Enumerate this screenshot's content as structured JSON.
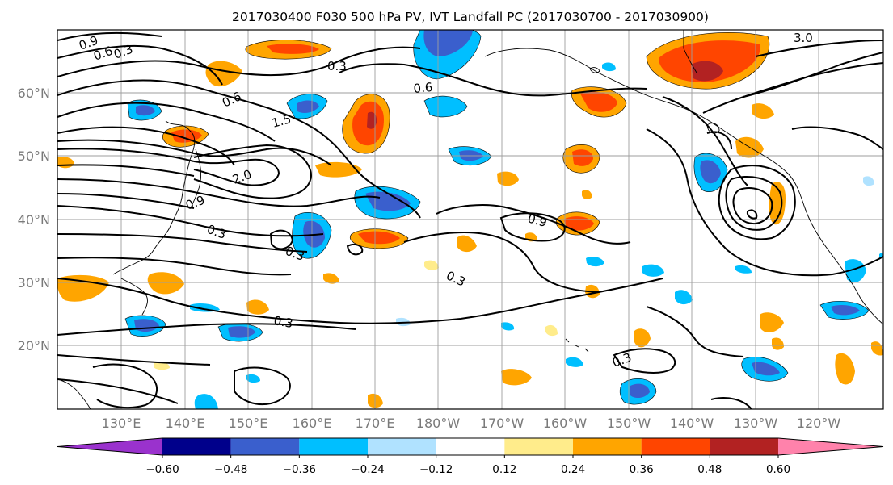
{
  "title": "2017030400 F030 500 hPa PV, IVT Landfall PC (2017030700 - 2017030900)",
  "map": {
    "lon_labels": [
      "130°E",
      "140°E",
      "150°E",
      "160°E",
      "170°E",
      "180°W",
      "170°W",
      "160°W",
      "150°W",
      "140°W",
      "130°W",
      "120°W"
    ],
    "lat_labels": [
      "60°N",
      "50°N",
      "40°N",
      "30°N",
      "20°N"
    ],
    "contour_labels": [
      "0.9",
      "0.6",
      "0.3",
      "1.5",
      "2.0",
      "0.9",
      "0.6",
      "0.3",
      "0.3",
      "0.3",
      "0.9",
      "0.3",
      "0.3",
      "3.0",
      "0.3",
      "0.6"
    ]
  },
  "colorbar": {
    "tick_labels": [
      "−0.60",
      "−0.48",
      "−0.36",
      "−0.24",
      "−0.12",
      "0.12",
      "0.24",
      "0.36",
      "0.48",
      "0.60"
    ],
    "colors": [
      "#9a32cd",
      "#00008b",
      "#3a5fcd",
      "#00bfff",
      "#b0e2ff",
      "#ffffff",
      "#ffec8b",
      "#ffa500",
      "#ff4500",
      "#b22222",
      "#ff82ab"
    ]
  }
}
